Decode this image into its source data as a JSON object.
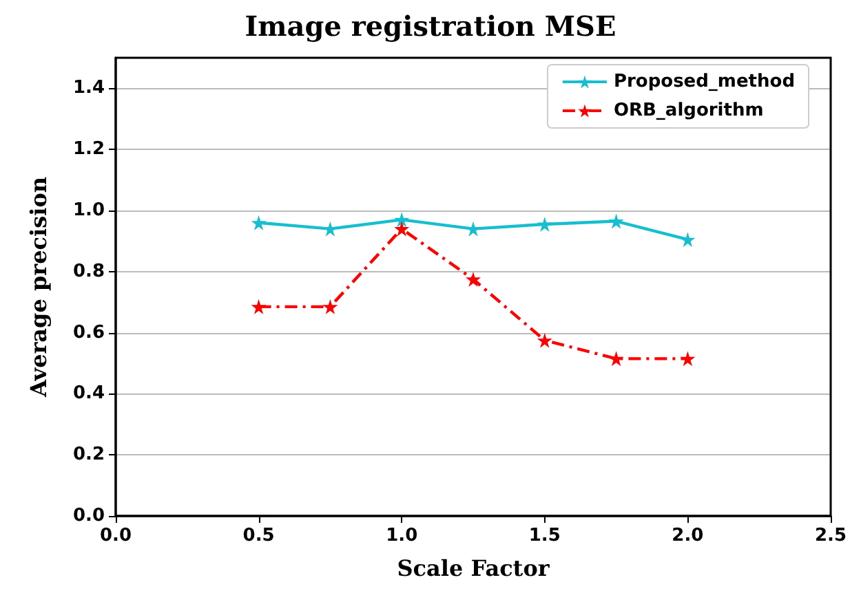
{
  "chart_data": {
    "type": "line",
    "title": "Image registration MSE",
    "xlabel": "Scale Factor",
    "ylabel": "Average precision",
    "x": [
      0.5,
      0.75,
      1.0,
      1.25,
      1.5,
      1.75,
      2.0
    ],
    "series": [
      {
        "name": "Proposed_method",
        "color": "#17becf",
        "values": [
          0.96,
          0.94,
          0.97,
          0.94,
          0.955,
          0.965,
          0.905
        ],
        "line_style": "solid"
      },
      {
        "name": "ORB_algorithm",
        "color": "#ff0000",
        "values": [
          0.685,
          0.685,
          0.94,
          0.775,
          0.575,
          0.515,
          0.515
        ],
        "line_style": "dashed"
      }
    ],
    "xlim": [
      0,
      2.5
    ],
    "xticks": [
      {
        "value": 0,
        "label": "0.0"
      },
      0.5,
      {
        "value": 1,
        "label": "1.0"
      },
      1.5,
      {
        "value": 2,
        "label": "2.0"
      },
      2.5
    ],
    "ylim": [
      0,
      1.5
    ],
    "yticks": [
      {
        "value": 0,
        "label": "0.0"
      },
      0.2,
      0.4,
      0.6,
      0.8,
      {
        "value": 1,
        "label": "1.0"
      },
      1.2,
      1.4
    ],
    "grid": "y",
    "legend": "top right",
    "marker": "star"
  }
}
